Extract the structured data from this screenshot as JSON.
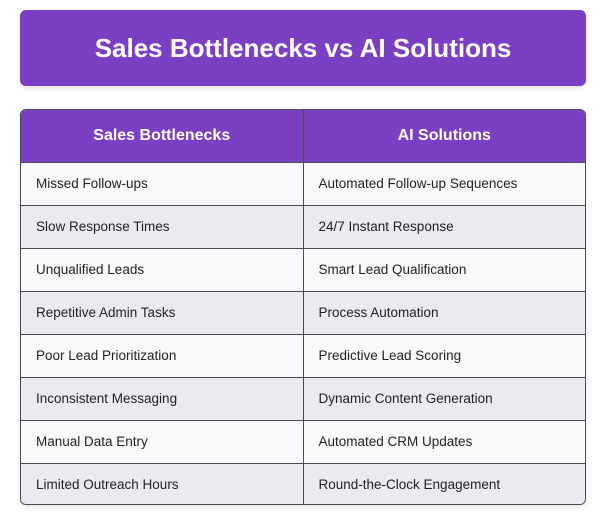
{
  "title": "Sales Bottlenecks vs AI Solutions",
  "table": {
    "headers": [
      "Sales Bottlenecks",
      "AI Solutions"
    ],
    "rows": [
      [
        "Missed Follow-ups",
        "Automated Follow-up Sequences"
      ],
      [
        "Slow Response Times",
        "24/7 Instant Response"
      ],
      [
        "Unqualified Leads",
        "Smart Lead Qualification"
      ],
      [
        "Repetitive Admin Tasks",
        "Process Automation"
      ],
      [
        "Poor Lead Prioritization",
        "Predictive Lead Scoring"
      ],
      [
        "Inconsistent Messaging",
        "Dynamic Content Generation"
      ],
      [
        "Manual Data Entry",
        "Automated CRM Updates"
      ],
      [
        "Limited Outreach Hours",
        "Round-the-Clock Engagement"
      ]
    ]
  },
  "colors": {
    "accent": "#7b3fc4",
    "row_light": "#f8f9fb",
    "row_dark": "#e9ebef",
    "border": "#4a4a52"
  }
}
